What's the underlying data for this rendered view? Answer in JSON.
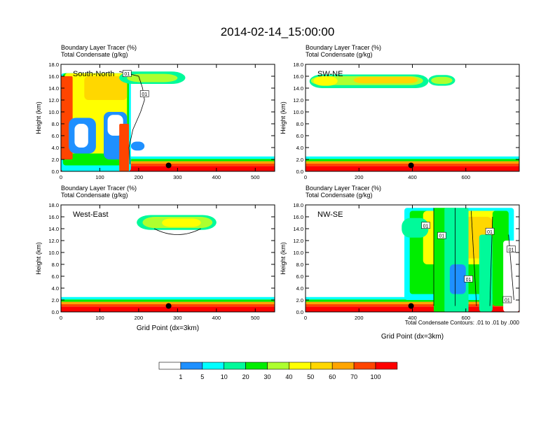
{
  "figure": {
    "title": "2014-02-14_15:00:00",
    "legend": {
      "colors": [
        "#ffffff",
        "#1e90ff",
        "#00ffff",
        "#00fa9a",
        "#00ee00",
        "#adff2f",
        "#ffff00",
        "#ffd700",
        "#ffa500",
        "#ff4500",
        "#ff0000"
      ],
      "labels": [
        "1",
        "5",
        "10",
        "20",
        "30",
        "40",
        "50",
        "60",
        "70",
        "100"
      ]
    },
    "contour_note": "Total Condensate Contours: .01 to .01 by .000",
    "station_marker": "black dot at ~1 km height"
  },
  "chart_data": [
    {
      "type": "heatmap",
      "panel": "South-North",
      "title_line1": "Boundary Layer Tracer    (%)",
      "title_line2": "Total Condensate    (g/kg)",
      "ylabel": "Height (km)",
      "xlabel": "",
      "xlim": [
        0,
        550
      ],
      "xticks": [
        "0",
        "100",
        "200",
        "300",
        "400",
        "500"
      ],
      "ylim": [
        0,
        18
      ],
      "yticks": [
        "0.0",
        "2.0",
        "4.0",
        "6.0",
        "8.0",
        "10.0",
        "12.0",
        "14.0",
        "16.0",
        "18.0"
      ],
      "contour_labels": [
        "01",
        "01"
      ],
      "marker_x": 277,
      "marker_y_km": 1.0
    },
    {
      "type": "heatmap",
      "panel": "SW-NE",
      "title_line1": "Boundary Layer Tracer    (%)",
      "title_line2": "Total Condensate    (g/kg)",
      "ylabel": "Height (km)",
      "xlabel": "",
      "xlim": [
        0,
        800
      ],
      "xticks": [
        "0",
        "200",
        "400",
        "600"
      ],
      "ylim": [
        0,
        18
      ],
      "yticks": [
        "0.0",
        "2.0",
        "4.0",
        "6.0",
        "8.0",
        "10.0",
        "12.0",
        "14.0",
        "16.0",
        "18.0"
      ],
      "contour_labels": [],
      "marker_x": 395,
      "marker_y_km": 1.0
    },
    {
      "type": "heatmap",
      "panel": "West-East",
      "title_line1": "Boundary Layer Tracer    (%)",
      "title_line2": "Total Condensate    (g/kg)",
      "ylabel": "Height (km)",
      "xlabel": "Grid Point (dx=3km)",
      "xlim": [
        0,
        550
      ],
      "xticks": [
        "0",
        "100",
        "200",
        "300",
        "400",
        "500"
      ],
      "ylim": [
        0,
        18
      ],
      "yticks": [
        "0.0",
        "2.0",
        "4.0",
        "6.0",
        "8.0",
        "10.0",
        "12.0",
        "14.0",
        "16.0",
        "18.0"
      ],
      "contour_labels": [],
      "marker_x": 277,
      "marker_y_km": 1.0
    },
    {
      "type": "heatmap",
      "panel": "NW-SE",
      "title_line1": "Boundary Layer Tracer    (%)",
      "title_line2": "Total Condensate    (g/kg)",
      "ylabel": "Height (km)",
      "xlabel": "Grid Point (dx=3km)",
      "xlim": [
        0,
        800
      ],
      "xticks": [
        "0",
        "200",
        "400",
        "600"
      ],
      "ylim": [
        0,
        18
      ],
      "yticks": [
        "0.0",
        "2.0",
        "4.0",
        "6.0",
        "8.0",
        "10.0",
        "12.0",
        "14.0",
        "16.0",
        "18.0"
      ],
      "contour_labels": [
        "01",
        "01",
        "01",
        "01",
        "01",
        "01"
      ],
      "marker_x": 395,
      "marker_y_km": 1.0
    }
  ]
}
